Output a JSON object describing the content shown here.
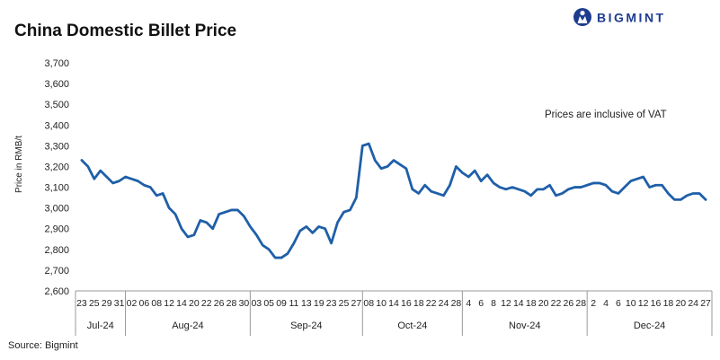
{
  "header": {
    "title": "China Domestic Billet Price",
    "brand": "BIGMINT",
    "brand_color": "#1d3c8f",
    "brand_icon": "bigmint-logo-icon"
  },
  "annotation": "Prices are inclusive of VAT",
  "source": "Source: Bigmint",
  "chart_data": {
    "type": "line",
    "title": "China Domestic Billet Price",
    "ylabel": "Price in RMB/t",
    "xlabel": "",
    "ylim": [
      2600,
      3700
    ],
    "yticks": [
      2600,
      2700,
      2800,
      2900,
      3000,
      3100,
      3200,
      3300,
      3400,
      3500,
      3600,
      3700
    ],
    "ytick_labels": [
      "2,600",
      "2,700",
      "2,800",
      "2,900",
      "3,000",
      "3,100",
      "3,200",
      "3,300",
      "3,400",
      "3,500",
      "3,600",
      "3,700"
    ],
    "grid": false,
    "line_color": "#1f5fa8",
    "months": [
      {
        "label": "Jul-24",
        "ticks": [
          "23",
          "25",
          "29",
          "31"
        ]
      },
      {
        "label": "Aug-24",
        "ticks": [
          "02",
          "06",
          "08",
          "12",
          "14",
          "20",
          "22",
          "26",
          "28",
          "30"
        ]
      },
      {
        "label": "Sep-24",
        "ticks": [
          "03",
          "05",
          "09",
          "11",
          "13",
          "19",
          "23",
          "25",
          "27"
        ]
      },
      {
        "label": "Oct-24",
        "ticks": [
          "08",
          "10",
          "14",
          "16",
          "18",
          "22",
          "24",
          "28"
        ]
      },
      {
        "label": "Nov-24",
        "ticks": [
          "4",
          "6",
          "8",
          "12",
          "14",
          "18",
          "20",
          "22",
          "26",
          "28"
        ]
      },
      {
        "label": "Dec-24",
        "ticks": [
          "2",
          "4",
          "6",
          "10",
          "12",
          "16",
          "18",
          "20",
          "24",
          "27"
        ]
      }
    ],
    "series": [
      {
        "values": [
          3230,
          3200,
          3140,
          3180,
          3150,
          3120,
          3130,
          3150,
          3140,
          3130,
          3110,
          3100,
          3060,
          3070,
          3000,
          2970,
          2900,
          2860,
          2870,
          2940,
          2930,
          2900,
          2970,
          2980,
          2990,
          2990,
          2960,
          2910,
          2870,
          2820,
          2800,
          2760,
          2760,
          2780,
          2830,
          2890,
          2910,
          2880,
          2910,
          2900,
          2830,
          2930,
          2980,
          2990,
          3050,
          3300,
          3310,
          3230,
          3190,
          3200,
          3230,
          3210,
          3190,
          3090,
          3070,
          3110,
          3080,
          3070,
          3060,
          3110,
          3200,
          3170,
          3150,
          3180,
          3130,
          3160,
          3120,
          3100,
          3090,
          3100,
          3090,
          3080,
          3060,
          3090,
          3090,
          3110,
          3060,
          3070,
          3090,
          3100,
          3100,
          3110,
          3120,
          3120,
          3110,
          3080,
          3070,
          3100,
          3130,
          3140,
          3150,
          3100,
          3110,
          3110,
          3070,
          3040,
          3040,
          3060,
          3070,
          3070,
          3040
        ]
      }
    ]
  }
}
